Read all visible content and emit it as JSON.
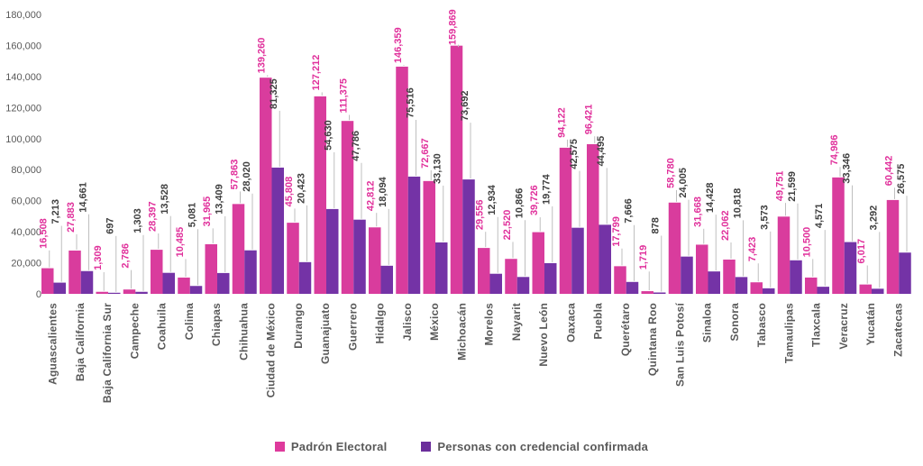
{
  "chart_data": {
    "type": "bar",
    "title": "",
    "xlabel": "",
    "ylabel": "",
    "ylim": [
      0,
      180000
    ],
    "ytick_step": 20000,
    "grid": false,
    "legend_position": "bottom",
    "categories": [
      "Aguascalientes",
      "Baja California",
      "Baja California Sur",
      "Campeche",
      "Coahuila",
      "Colima",
      "Chiapas",
      "Chihuahua",
      "Ciudad de México",
      "Durango",
      "Guanajuato",
      "Guerrero",
      "Hidalgo",
      "Jalisco",
      "México",
      "Michoacán",
      "Morelos",
      "Nayarit",
      "Nuevo León",
      "Oaxaca",
      "Puebla",
      "Querétaro",
      "Quintana Roo",
      "San Luis Potosí",
      "Sinaloa",
      "Sonora",
      "Tabasco",
      "Tamaulipas",
      "Tlaxcala",
      "Veracruz",
      "Yucatán",
      "Zacatecas"
    ],
    "series": [
      {
        "name": "Padrón Electoral",
        "color": "#D93C9D",
        "label_color": "#E0309B",
        "values": [
          16508,
          27883,
          1309,
          2786,
          28397,
          10485,
          31965,
          57863,
          139260,
          45808,
          127212,
          111375,
          42812,
          146359,
          72667,
          159869,
          29556,
          22520,
          39726,
          94122,
          96421,
          17799,
          1719,
          58780,
          31668,
          22062,
          7423,
          49751,
          10500,
          74986,
          6017,
          60442
        ]
      },
      {
        "name": "Personas con credencial confirmada",
        "color": "#7433A6",
        "label_color": "#3F3F3F",
        "values": [
          7213,
          14661,
          697,
          1303,
          13528,
          5081,
          13409,
          28020,
          81325,
          20423,
          54630,
          47786,
          18094,
          75516,
          33130,
          73692,
          12934,
          10866,
          19774,
          42575,
          44495,
          7666,
          878,
          24005,
          14428,
          10818,
          3573,
          21599,
          4571,
          33346,
          3292,
          26575
        ]
      }
    ],
    "axis_text_color": "#595959",
    "leader_line_color": "#BFBFBF",
    "legend_swatch_colors": [
      "#DE3A9C",
      "#6B2E9B"
    ]
  }
}
